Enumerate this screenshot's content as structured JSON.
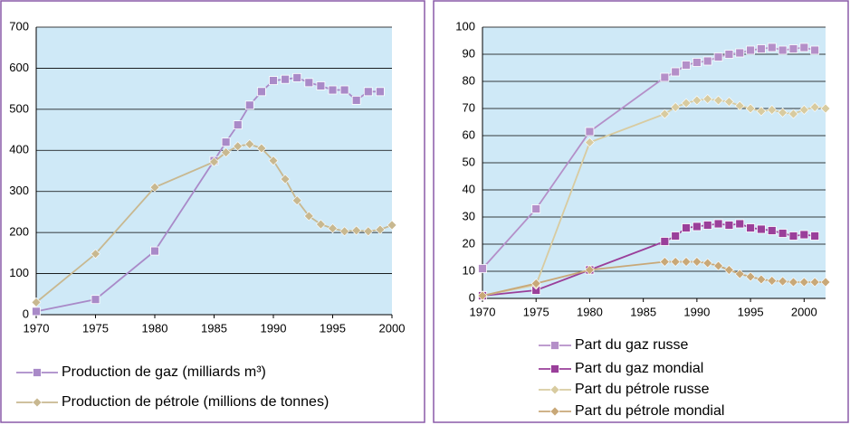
{
  "chart_data": [
    {
      "type": "line",
      "x": [
        1970,
        1975,
        1980,
        1985,
        1986,
        1987,
        1988,
        1989,
        1990,
        1991,
        1992,
        1993,
        1994,
        1995,
        1996,
        1997,
        1998,
        1999,
        2000
      ],
      "xlim": [
        1970,
        2000
      ],
      "xticks": [
        1970,
        1975,
        1980,
        1985,
        1990,
        1995,
        2000
      ],
      "ylim": [
        0,
        700
      ],
      "yticks": [
        0,
        100,
        200,
        300,
        400,
        500,
        600,
        700
      ],
      "grid": true,
      "series": [
        {
          "name": "Production de gaz (milliards m³)",
          "color": "#a98ac8",
          "marker": "square",
          "values": [
            8,
            37,
            155,
            375,
            420,
            462,
            510,
            543,
            570,
            573,
            577,
            565,
            557,
            547,
            547,
            522,
            543,
            543,
            null
          ]
        },
        {
          "name": "Production de pétrole (millions de tonnes)",
          "color": "#c8b890",
          "marker": "diamond",
          "values": [
            30,
            148,
            310,
            372,
            395,
            410,
            415,
            405,
            375,
            330,
            278,
            240,
            220,
            210,
            203,
            205,
            203,
            207,
            218
          ]
        }
      ]
    },
    {
      "type": "line",
      "x": [
        1970,
        1975,
        1980,
        1987,
        1988,
        1989,
        1990,
        1991,
        1992,
        1993,
        1994,
        1995,
        1996,
        1997,
        1998,
        1999,
        2000,
        2001,
        2002
      ],
      "xlim": [
        1970,
        2002
      ],
      "xticks": [
        1970,
        1975,
        1980,
        1985,
        1990,
        1995,
        2000
      ],
      "ylim": [
        0,
        100
      ],
      "yticks": [
        0,
        10,
        20,
        30,
        40,
        50,
        60,
        70,
        80,
        90,
        100
      ],
      "grid": true,
      "series": [
        {
          "name": "Part du gaz russe",
          "color": "#b48fc8",
          "marker": "square",
          "values": [
            11,
            33,
            61.5,
            81.5,
            83.5,
            86,
            87,
            87.5,
            89,
            90,
            90.5,
            91.5,
            92,
            92.5,
            91.5,
            92,
            92.5,
            91.5,
            null
          ]
        },
        {
          "name": "Part du gaz mondial",
          "color": "#9a3f9a",
          "marker": "square",
          "values": [
            1,
            3,
            10.5,
            21,
            23,
            26,
            26.5,
            27,
            27.5,
            27,
            27.5,
            26,
            25.5,
            25,
            24,
            23,
            23.5,
            23,
            null
          ]
        },
        {
          "name": "Part du pétrole russe",
          "color": "#d8cba0",
          "marker": "diamond",
          "values": [
            1,
            5,
            57.5,
            68,
            70.5,
            72,
            73,
            73.5,
            73,
            72.5,
            71,
            70,
            69,
            69.5,
            68.5,
            68,
            69.5,
            70.5,
            70
          ]
        },
        {
          "name": "Part du pétrole mondial",
          "color": "#c8a878",
          "marker": "diamond",
          "values": [
            1,
            5.5,
            10.5,
            13.5,
            13.5,
            13.5,
            13.5,
            13,
            12,
            10.5,
            9,
            8,
            7,
            6.5,
            6.3,
            6,
            6,
            6,
            6
          ]
        }
      ]
    }
  ]
}
